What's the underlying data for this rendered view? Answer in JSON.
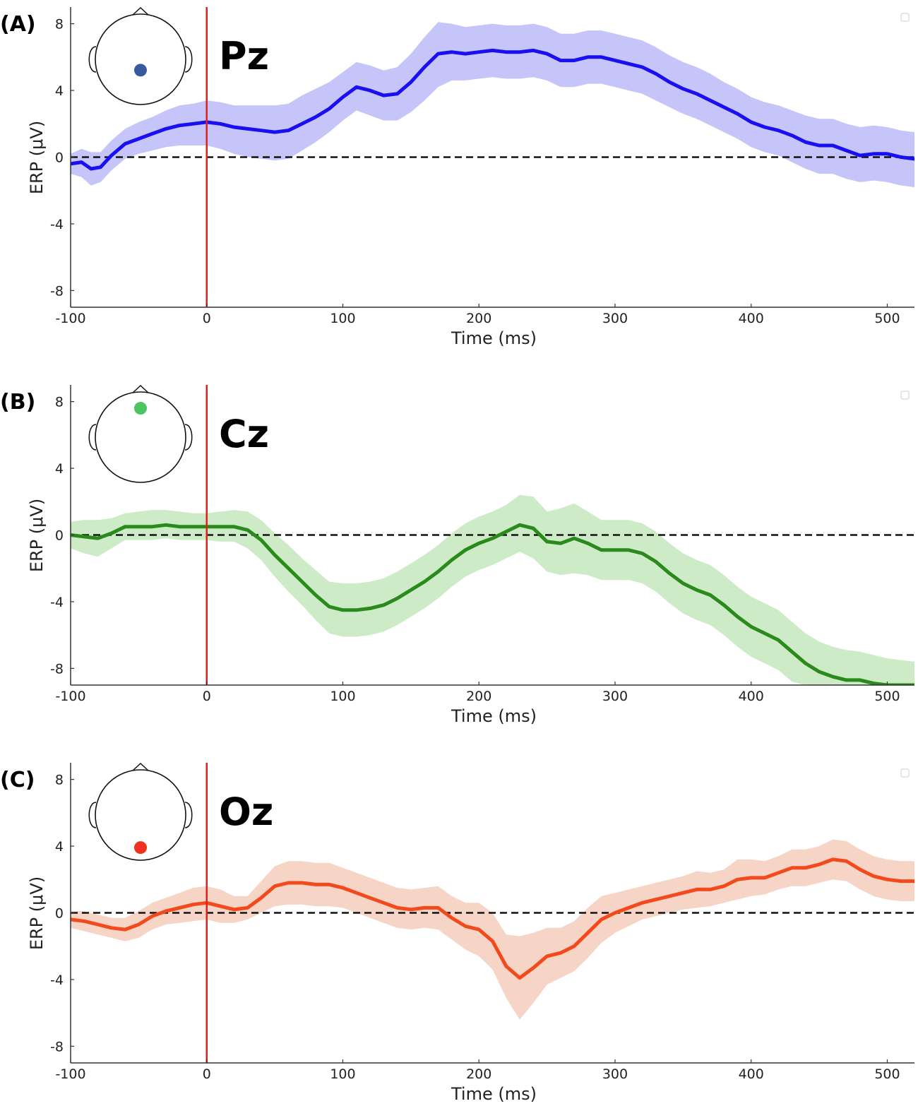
{
  "chart_data": [
    {
      "type": "line",
      "panel_label": "(A)",
      "electrode": "Pz",
      "xlabel": "Time (ms)",
      "ylabel": "ERP (μV)",
      "xlim": [
        -100,
        520
      ],
      "ylim": [
        -9,
        9
      ],
      "xticks": [
        -100,
        0,
        100,
        200,
        300,
        400,
        500
      ],
      "yticks": [
        8,
        4,
        0,
        -4,
        -8
      ],
      "stimulus_onset_ms": 0,
      "reference_line": 0,
      "line_color": "#1a0ff0",
      "band_color": "#b7b6f7",
      "onset_color": "#e0201a",
      "electrode_color": "#3a5aa0",
      "electrode_position": "parietal",
      "series": [
        {
          "x": [
            -100,
            -92,
            -85,
            -78,
            -70,
            -60,
            -50,
            -40,
            -30,
            -20,
            -10,
            0,
            10,
            20,
            30,
            40,
            50,
            60,
            70,
            80,
            90,
            100,
            110,
            120,
            130,
            140,
            150,
            160,
            170,
            180,
            190,
            200,
            210,
            220,
            230,
            240,
            250,
            260,
            270,
            280,
            290,
            300,
            310,
            320,
            330,
            340,
            350,
            360,
            370,
            380,
            390,
            400,
            410,
            420,
            430,
            440,
            450,
            460,
            470,
            480,
            490,
            500,
            510,
            520
          ],
          "y": [
            -0.4,
            -0.3,
            -0.7,
            -0.6,
            0.1,
            0.8,
            1.1,
            1.4,
            1.7,
            1.9,
            2.0,
            2.1,
            2.0,
            1.8,
            1.7,
            1.6,
            1.5,
            1.6,
            2.0,
            2.4,
            2.9,
            3.6,
            4.2,
            4.0,
            3.7,
            3.8,
            4.5,
            5.4,
            6.2,
            6.3,
            6.2,
            6.3,
            6.4,
            6.3,
            6.3,
            6.4,
            6.2,
            5.8,
            5.8,
            6.0,
            6.0,
            5.8,
            5.6,
            5.4,
            5.0,
            4.5,
            4.1,
            3.8,
            3.4,
            3.0,
            2.6,
            2.1,
            1.8,
            1.6,
            1.3,
            0.9,
            0.7,
            0.7,
            0.4,
            0.1,
            0.2,
            0.2,
            0.0,
            -0.1
          ],
          "lower": [
            -1.0,
            -1.2,
            -1.7,
            -1.5,
            -0.8,
            -0.1,
            0.2,
            0.4,
            0.6,
            0.7,
            0.7,
            0.7,
            0.5,
            0.2,
            0.0,
            -0.1,
            -0.2,
            -0.1,
            0.4,
            0.9,
            1.5,
            2.2,
            2.8,
            2.5,
            2.2,
            2.2,
            2.7,
            3.4,
            4.2,
            4.6,
            4.6,
            4.7,
            4.8,
            4.7,
            4.7,
            4.8,
            4.6,
            4.2,
            4.2,
            4.4,
            4.4,
            4.2,
            4.0,
            3.8,
            3.4,
            3.0,
            2.6,
            2.3,
            1.9,
            1.5,
            1.1,
            0.6,
            0.3,
            0.1,
            -0.3,
            -0.7,
            -1.0,
            -1.0,
            -1.3,
            -1.5,
            -1.4,
            -1.5,
            -1.7,
            -1.8
          ],
          "upper": [
            0.2,
            0.5,
            0.3,
            0.3,
            1.0,
            1.7,
            2.1,
            2.4,
            2.8,
            3.1,
            3.2,
            3.4,
            3.3,
            3.1,
            3.1,
            3.1,
            3.1,
            3.2,
            3.7,
            4.1,
            4.5,
            5.1,
            5.7,
            5.5,
            5.2,
            5.4,
            6.2,
            7.2,
            8.1,
            8.0,
            7.8,
            7.9,
            8.0,
            7.9,
            7.9,
            8.0,
            7.8,
            7.4,
            7.4,
            7.6,
            7.6,
            7.4,
            7.2,
            7.0,
            6.6,
            6.1,
            5.7,
            5.4,
            5.0,
            4.5,
            4.1,
            3.6,
            3.3,
            3.1,
            2.8,
            2.5,
            2.3,
            2.3,
            2.0,
            1.8,
            1.9,
            1.8,
            1.6,
            1.5
          ]
        }
      ]
    },
    {
      "type": "line",
      "panel_label": "(B)",
      "electrode": "Cz",
      "xlabel": "Time (ms)",
      "ylabel": "ERP (μV)",
      "xlim": [
        -100,
        520
      ],
      "ylim": [
        -9,
        9
      ],
      "xticks": [
        -100,
        0,
        100,
        200,
        300,
        400,
        500
      ],
      "yticks": [
        8,
        4,
        0,
        -4,
        -8
      ],
      "stimulus_onset_ms": 0,
      "reference_line": 0,
      "line_color": "#2b8a1c",
      "band_color": "#bfe6b8",
      "onset_color": "#e0201a",
      "electrode_color": "#4dc462",
      "electrode_position": "central",
      "series": [
        {
          "x": [
            -100,
            -90,
            -80,
            -70,
            -60,
            -50,
            -40,
            -30,
            -20,
            -10,
            0,
            10,
            20,
            30,
            40,
            50,
            60,
            70,
            80,
            90,
            100,
            110,
            120,
            130,
            140,
            150,
            160,
            170,
            180,
            190,
            200,
            210,
            220,
            230,
            240,
            250,
            260,
            270,
            280,
            290,
            300,
            310,
            320,
            330,
            340,
            350,
            360,
            370,
            380,
            390,
            400,
            410,
            420,
            430,
            440,
            450,
            460,
            470,
            480,
            490,
            500,
            510,
            520
          ],
          "y": [
            0.0,
            -0.1,
            -0.2,
            0.1,
            0.5,
            0.5,
            0.5,
            0.6,
            0.5,
            0.5,
            0.5,
            0.5,
            0.5,
            0.3,
            -0.3,
            -1.2,
            -2.0,
            -2.8,
            -3.6,
            -4.3,
            -4.5,
            -4.5,
            -4.4,
            -4.2,
            -3.8,
            -3.3,
            -2.8,
            -2.2,
            -1.5,
            -0.9,
            -0.5,
            -0.2,
            0.2,
            0.6,
            0.4,
            -0.4,
            -0.5,
            -0.2,
            -0.5,
            -0.9,
            -0.9,
            -0.9,
            -1.1,
            -1.6,
            -2.3,
            -2.9,
            -3.3,
            -3.6,
            -4.2,
            -4.9,
            -5.5,
            -5.9,
            -6.3,
            -7.0,
            -7.7,
            -8.2,
            -8.5,
            -8.7,
            -8.7,
            -8.9,
            -9.0,
            -9.0,
            -9.0
          ],
          "lower": [
            -0.8,
            -1.1,
            -1.3,
            -0.8,
            -0.3,
            -0.3,
            -0.3,
            -0.2,
            -0.3,
            -0.3,
            -0.3,
            -0.4,
            -0.4,
            -0.8,
            -1.5,
            -2.5,
            -3.4,
            -4.2,
            -5.1,
            -5.9,
            -6.1,
            -6.1,
            -6.0,
            -5.8,
            -5.4,
            -4.9,
            -4.4,
            -3.8,
            -3.1,
            -2.5,
            -2.1,
            -1.8,
            -1.4,
            -1.0,
            -1.4,
            -2.2,
            -2.4,
            -2.3,
            -2.4,
            -2.7,
            -2.7,
            -2.7,
            -2.9,
            -3.4,
            -4.1,
            -4.7,
            -5.1,
            -5.4,
            -6.0,
            -6.7,
            -7.3,
            -7.7,
            -8.1,
            -8.8,
            -9.0,
            -9.0,
            -9.0,
            -9.0,
            -9.0,
            -9.0,
            -9.0,
            -9.0,
            -9.0
          ],
          "upper": [
            0.8,
            0.9,
            0.9,
            1.0,
            1.3,
            1.4,
            1.5,
            1.5,
            1.4,
            1.3,
            1.3,
            1.4,
            1.5,
            1.4,
            0.9,
            0.1,
            -0.6,
            -1.4,
            -2.1,
            -2.8,
            -2.9,
            -2.9,
            -2.8,
            -2.6,
            -2.2,
            -1.7,
            -1.2,
            -0.6,
            0.1,
            0.7,
            1.1,
            1.4,
            1.8,
            2.4,
            2.3,
            1.4,
            1.6,
            1.9,
            1.4,
            0.9,
            0.9,
            0.9,
            0.7,
            0.2,
            -0.5,
            -1.1,
            -1.5,
            -1.8,
            -2.4,
            -3.1,
            -3.7,
            -4.1,
            -4.5,
            -5.2,
            -5.9,
            -6.4,
            -6.7,
            -6.9,
            -7.0,
            -7.2,
            -7.4,
            -7.5,
            -7.6
          ]
        }
      ]
    },
    {
      "type": "line",
      "panel_label": "(C)",
      "electrode": "Oz",
      "xlabel": "Time (ms)",
      "ylabel": "ERP (μV)",
      "xlim": [
        -100,
        520
      ],
      "ylim": [
        -9,
        9
      ],
      "xticks": [
        -100,
        0,
        100,
        200,
        300,
        400,
        500
      ],
      "yticks": [
        8,
        4,
        0,
        -4,
        -8
      ],
      "stimulus_onset_ms": 0,
      "reference_line": 0,
      "line_color": "#f24a1c",
      "band_color": "#f4c9b8",
      "onset_color": "#e0201a",
      "electrode_color": "#f03020",
      "electrode_position": "occipital",
      "series": [
        {
          "x": [
            -100,
            -90,
            -80,
            -70,
            -60,
            -50,
            -40,
            -30,
            -20,
            -10,
            0,
            10,
            20,
            30,
            40,
            50,
            60,
            70,
            80,
            90,
            100,
            110,
            120,
            130,
            140,
            150,
            160,
            170,
            180,
            190,
            200,
            210,
            220,
            230,
            240,
            250,
            260,
            270,
            280,
            290,
            300,
            310,
            320,
            330,
            340,
            350,
            360,
            370,
            380,
            390,
            400,
            410,
            420,
            430,
            440,
            450,
            460,
            470,
            480,
            490,
            500,
            510,
            520
          ],
          "y": [
            -0.4,
            -0.5,
            -0.7,
            -0.9,
            -1.0,
            -0.7,
            -0.2,
            0.1,
            0.3,
            0.5,
            0.6,
            0.4,
            0.2,
            0.3,
            0.9,
            1.6,
            1.8,
            1.8,
            1.7,
            1.7,
            1.5,
            1.2,
            0.9,
            0.6,
            0.3,
            0.2,
            0.3,
            0.3,
            -0.3,
            -0.8,
            -1.0,
            -1.7,
            -3.2,
            -3.9,
            -3.3,
            -2.6,
            -2.4,
            -2.0,
            -1.2,
            -0.4,
            0.0,
            0.3,
            0.6,
            0.8,
            1.0,
            1.2,
            1.4,
            1.4,
            1.6,
            2.0,
            2.1,
            2.1,
            2.4,
            2.7,
            2.7,
            2.9,
            3.2,
            3.1,
            2.6,
            2.2,
            2.0,
            1.9,
            1.9
          ],
          "lower": [
            -0.9,
            -1.1,
            -1.3,
            -1.5,
            -1.7,
            -1.5,
            -1.0,
            -0.7,
            -0.6,
            -0.5,
            -0.4,
            -0.6,
            -0.6,
            -0.4,
            0.0,
            0.4,
            0.5,
            0.5,
            0.4,
            0.4,
            0.3,
            0.0,
            -0.3,
            -0.6,
            -0.9,
            -1.0,
            -0.9,
            -1.0,
            -1.6,
            -2.2,
            -2.6,
            -3.4,
            -5.1,
            -6.4,
            -5.4,
            -4.3,
            -3.9,
            -3.5,
            -2.7,
            -1.8,
            -1.2,
            -0.8,
            -0.4,
            -0.2,
            0.0,
            0.2,
            0.3,
            0.4,
            0.6,
            0.8,
            1.0,
            1.1,
            1.4,
            1.6,
            1.6,
            1.8,
            2.0,
            1.9,
            1.4,
            1.0,
            0.8,
            0.7,
            0.7
          ],
          "upper": [
            0.1,
            0.1,
            -0.1,
            -0.3,
            -0.3,
            0.1,
            0.6,
            0.9,
            1.2,
            1.5,
            1.6,
            1.4,
            1.0,
            1.0,
            1.9,
            2.8,
            3.1,
            3.1,
            3.0,
            3.0,
            2.7,
            2.4,
            2.1,
            1.8,
            1.5,
            1.4,
            1.5,
            1.6,
            1.0,
            0.6,
            0.6,
            0.0,
            -1.3,
            -1.4,
            -1.2,
            -0.9,
            -0.9,
            -0.5,
            0.3,
            1.0,
            1.2,
            1.4,
            1.6,
            1.8,
            2.0,
            2.2,
            2.5,
            2.4,
            2.6,
            3.2,
            3.2,
            3.1,
            3.4,
            3.8,
            3.8,
            4.0,
            4.4,
            4.3,
            3.8,
            3.4,
            3.2,
            3.1,
            3.1
          ]
        }
      ]
    }
  ]
}
